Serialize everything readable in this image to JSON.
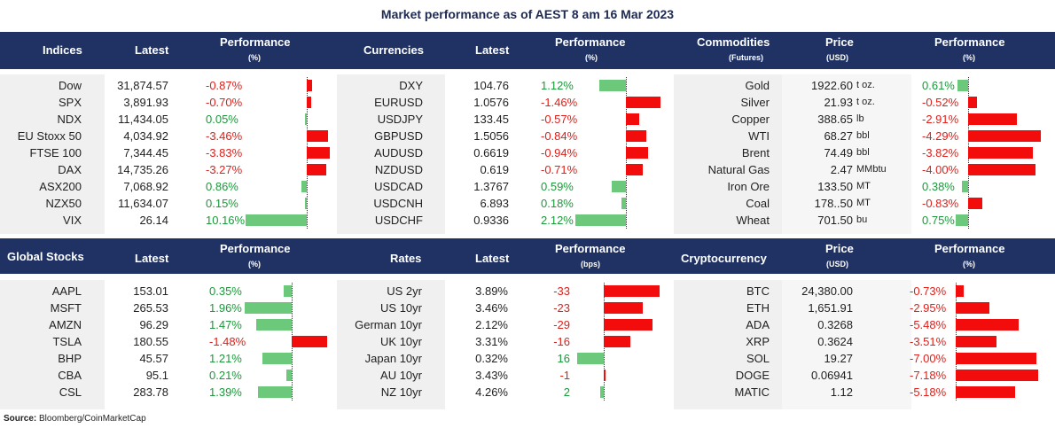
{
  "title": "Market performance as of AEST 8 am 16 Mar 2023",
  "source_label": "Source:",
  "source_text": "Bloomberg/CoinMarketCap",
  "headers_top": {
    "indices": "Indices",
    "latest1": "Latest",
    "perf1": "Performance",
    "perf1_unit": "(%)",
    "currencies": "Currencies",
    "latest2": "Latest",
    "perf2": "Performance",
    "perf2_unit": "(%)",
    "commodities": "Commodities",
    "commodities_sub": "(Futures)",
    "price": "Price",
    "price_unit": "(USD)",
    "perf3": "Performance",
    "perf3_unit": "(%)"
  },
  "headers_bottom": {
    "global": "Global Stocks",
    "latest1": "Latest",
    "perf1": "Performance",
    "perf1_unit": "(%)",
    "rates": "Rates",
    "latest2": "Latest",
    "perf2": "Performance",
    "perf2_unit": "(bps)",
    "crypto": "Cryptocurrency",
    "price": "Price",
    "price_unit": "(USD)",
    "perf3": "Performance",
    "perf3_unit": "(%)"
  },
  "indices": [
    {
      "name": "Dow",
      "latest": "31,874.57",
      "perf": "-0.87%",
      "value": -0.87
    },
    {
      "name": "SPX",
      "latest": "3,891.93",
      "perf": "-0.70%",
      "value": -0.7
    },
    {
      "name": "NDX",
      "latest": "11,434.05",
      "perf": "0.05%",
      "value": 0.05
    },
    {
      "name": "EU Stoxx 50",
      "latest": "4,034.92",
      "perf": "-3.46%",
      "value": -3.46
    },
    {
      "name": "FTSE 100",
      "latest": "7,344.45",
      "perf": "-3.83%",
      "value": -3.83
    },
    {
      "name": "DAX",
      "latest": "14,735.26",
      "perf": "-3.27%",
      "value": -3.27
    },
    {
      "name": "ASX200",
      "latest": "7,068.92",
      "perf": "0.86%",
      "value": 0.86
    },
    {
      "name": "NZX50",
      "latest": "11,634.07",
      "perf": "0.15%",
      "value": 0.15
    },
    {
      "name": "VIX",
      "latest": "26.14",
      "perf": "10.16%",
      "value": 10.16
    }
  ],
  "currencies": [
    {
      "name": "DXY",
      "latest": "104.76",
      "perf": "1.12%",
      "value": 1.12
    },
    {
      "name": "EURUSD",
      "latest": "1.0576",
      "perf": "-1.46%",
      "value": -1.46
    },
    {
      "name": "USDJPY",
      "latest": "133.45",
      "perf": "-0.57%",
      "value": -0.57
    },
    {
      "name": "GBPUSD",
      "latest": "1.5056",
      "perf": "-0.84%",
      "value": -0.84
    },
    {
      "name": "AUDUSD",
      "latest": "0.6619",
      "perf": "-0.94%",
      "value": -0.94
    },
    {
      "name": "NZDUSD",
      "latest": "0.619",
      "perf": "-0.71%",
      "value": -0.71
    },
    {
      "name": "USDCAD",
      "latest": "1.3767",
      "perf": "0.59%",
      "value": 0.59
    },
    {
      "name": "USDCNH",
      "latest": "6.893",
      "perf": "0.18%",
      "value": 0.18
    },
    {
      "name": "USDCHF",
      "latest": "0.9336",
      "perf": "2.12%",
      "value": 2.12
    }
  ],
  "commodities": [
    {
      "name": "Gold",
      "price": "1922.60",
      "unit": "t oz.",
      "perf": "0.61%",
      "value": 0.61
    },
    {
      "name": "Silver",
      "price": "21.93",
      "unit": "t oz.",
      "perf": "-0.52%",
      "value": -0.52
    },
    {
      "name": "Copper",
      "price": "388.65",
      "unit": "lb",
      "perf": "-2.91%",
      "value": -2.91
    },
    {
      "name": "WTI",
      "price": "68.27",
      "unit": "bbl",
      "perf": "-4.29%",
      "value": -4.29
    },
    {
      "name": "Brent",
      "price": "74.49",
      "unit": "bbl",
      "perf": "-3.82%",
      "value": -3.82
    },
    {
      "name": "Natural Gas",
      "price": "2.47",
      "unit": "MMbtu",
      "perf": "-4.00%",
      "value": -4.0
    },
    {
      "name": "Iron Ore",
      "price": "133.50",
      "unit": "MT",
      "perf": "0.38%",
      "value": 0.38
    },
    {
      "name": "Coal",
      "price": "178..50",
      "unit": "MT",
      "perf": "-0.83%",
      "value": -0.83
    },
    {
      "name": "Wheat",
      "price": "701.50",
      "unit": "bu",
      "perf": "0.75%",
      "value": 0.75
    }
  ],
  "global_stocks": [
    {
      "name": "AAPL",
      "latest": "153.01",
      "perf": "0.35%",
      "value": 0.35
    },
    {
      "name": "MSFT",
      "latest": "265.53",
      "perf": "1.96%",
      "value": 1.96
    },
    {
      "name": "AMZN",
      "latest": "96.29",
      "perf": "1.47%",
      "value": 1.47
    },
    {
      "name": "TSLA",
      "latest": "180.55",
      "perf": "-1.48%",
      "value": -1.48
    },
    {
      "name": "BHP",
      "latest": "45.57",
      "perf": "1.21%",
      "value": 1.21
    },
    {
      "name": "CBA",
      "latest": "95.1",
      "perf": "0.21%",
      "value": 0.21
    },
    {
      "name": "CSL",
      "latest": "283.78",
      "perf": "1.39%",
      "value": 1.39
    }
  ],
  "rates": [
    {
      "name": "US 2yr",
      "latest": "3.89%",
      "perf": "-33",
      "value": -33
    },
    {
      "name": "US 10yr",
      "latest": "3.46%",
      "perf": "-23",
      "value": -23
    },
    {
      "name": "German 10yr",
      "latest": "2.12%",
      "perf": "-29",
      "value": -29
    },
    {
      "name": "UK 10yr",
      "latest": "3.31%",
      "perf": "-16",
      "value": -16
    },
    {
      "name": "Japan 10yr",
      "latest": "0.32%",
      "perf": "16",
      "value": 16
    },
    {
      "name": "AU 10yr",
      "latest": "3.43%",
      "perf": "-1",
      "value": -1
    },
    {
      "name": "NZ 10yr",
      "latest": "4.26%",
      "perf": "2",
      "value": 2
    }
  ],
  "crypto": [
    {
      "name": "BTC",
      "price": "24,380.00",
      "perf": "-0.73%",
      "value": -0.73
    },
    {
      "name": "ETH",
      "price": "1,651.91",
      "perf": "-2.95%",
      "value": -2.95
    },
    {
      "name": "ADA",
      "price": "0.3268",
      "perf": "-5.48%",
      "value": -5.48
    },
    {
      "name": "XRP",
      "price": "0.3624",
      "perf": "-3.51%",
      "value": -3.51
    },
    {
      "name": "SOL",
      "price": "19.27",
      "perf": "-7.00%",
      "value": -7.0
    },
    {
      "name": "DOGE",
      "price": "0.06941",
      "perf": "-7.18%",
      "value": -7.18
    },
    {
      "name": "MATIC",
      "price": "1.12",
      "perf": "-5.18%",
      "value": -5.18
    }
  ]
}
